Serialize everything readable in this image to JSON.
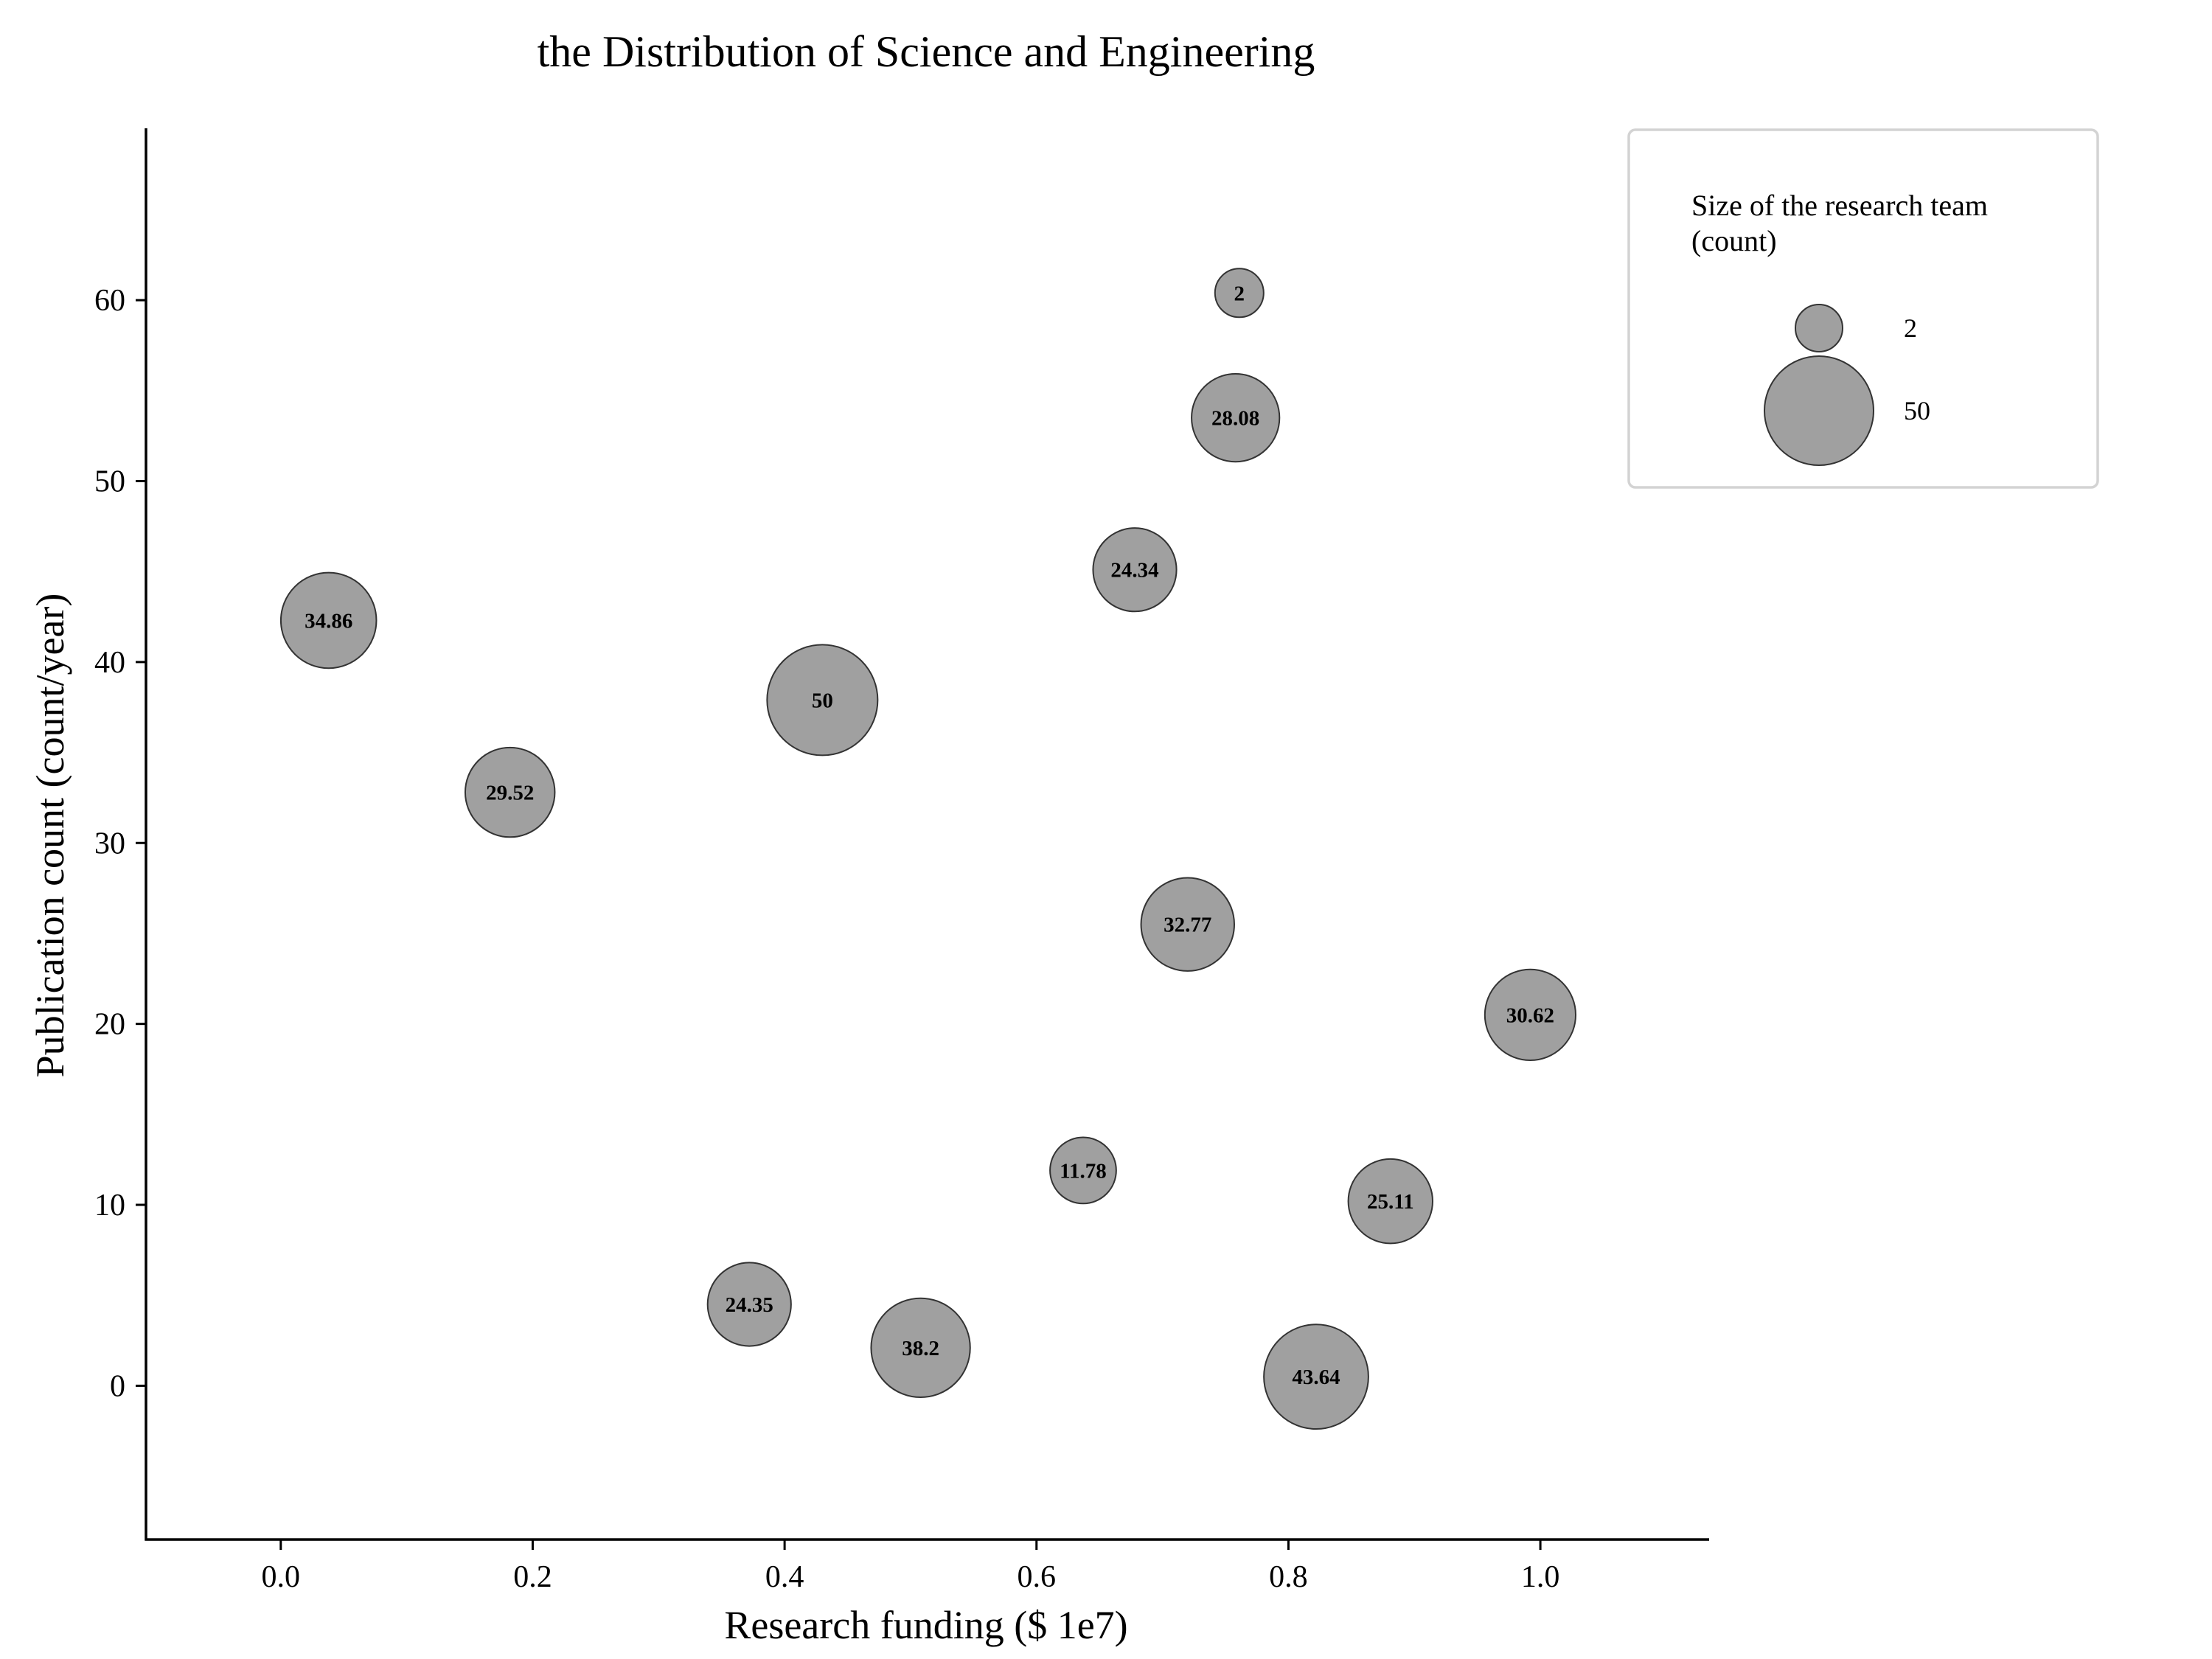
{
  "chart_data": {
    "type": "scatter",
    "title": "the Distribution of Science and Engineering",
    "xlabel": "Research funding ($ 1e7)",
    "ylabel": "Publication count (count/year)",
    "xlim": [
      -0.107,
      1.134
    ],
    "ylim": [
      -8.5,
      69.5
    ],
    "xticks": [
      0.0,
      0.2,
      0.4,
      0.6,
      0.8,
      1.0
    ],
    "xtick_labels": [
      "0.0",
      "0.2",
      "0.4",
      "0.6",
      "0.8",
      "1.0"
    ],
    "yticks": [
      0,
      10,
      20,
      30,
      40,
      50,
      60
    ],
    "ytick_labels": [
      "0",
      "10",
      "20",
      "30",
      "40",
      "50",
      "60"
    ],
    "grid": false,
    "bubble_color": "#a0a0a0",
    "edge_color": "#333333",
    "size_range": [
      2,
      50
    ],
    "points": [
      {
        "x": 0.038,
        "y": 42.3,
        "size": 34.86,
        "label": "34.86"
      },
      {
        "x": 0.182,
        "y": 32.8,
        "size": 29.52,
        "label": "29.52"
      },
      {
        "x": 0.372,
        "y": 4.5,
        "size": 24.35,
        "label": "24.35"
      },
      {
        "x": 0.43,
        "y": 37.9,
        "size": 50,
        "label": "50"
      },
      {
        "x": 0.508,
        "y": 2.1,
        "size": 38.2,
        "label": "38.2"
      },
      {
        "x": 0.637,
        "y": 11.9,
        "size": 11.78,
        "label": "11.78"
      },
      {
        "x": 0.678,
        "y": 45.1,
        "size": 24.34,
        "label": "24.34"
      },
      {
        "x": 0.72,
        "y": 25.5,
        "size": 32.77,
        "label": "32.77"
      },
      {
        "x": 0.758,
        "y": 53.5,
        "size": 28.08,
        "label": "28.08"
      },
      {
        "x": 0.761,
        "y": 60.4,
        "size": 2,
        "label": "2"
      },
      {
        "x": 0.822,
        "y": 0.5,
        "size": 43.64,
        "label": "43.64"
      },
      {
        "x": 0.881,
        "y": 10.2,
        "size": 25.11,
        "label": "25.11"
      },
      {
        "x": 0.992,
        "y": 20.5,
        "size": 30.62,
        "label": "30.62"
      }
    ],
    "legend": {
      "title": "Size of the research team\n(count)",
      "position": "top-right",
      "entries": [
        {
          "label": "2",
          "size": 2
        },
        {
          "label": "50",
          "size": 50
        }
      ]
    }
  }
}
